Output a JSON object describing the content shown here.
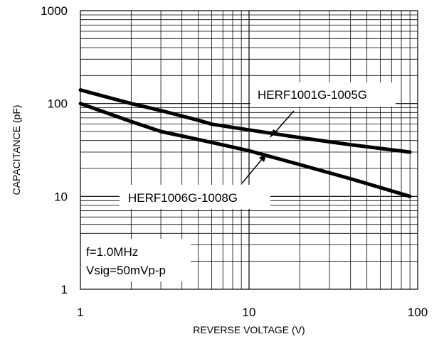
{
  "chart_data": {
    "type": "line",
    "title": "",
    "xlabel": "REVERSE VOLTAGE (V)",
    "ylabel": "CAPACITANCE (pF)",
    "x_scale": "log",
    "y_scale": "log",
    "xlim": [
      1,
      100
    ],
    "ylim": [
      1,
      1000
    ],
    "grid": true,
    "x_ticks": [
      "1",
      "10",
      "100"
    ],
    "y_ticks": [
      "1",
      "10",
      "100",
      "1000"
    ],
    "series": [
      {
        "name": "HERF1001G-1005G",
        "x": [
          1,
          2,
          3,
          5,
          6,
          10,
          20,
          40,
          90
        ],
        "y": [
          140,
          100,
          84,
          66,
          60,
          52,
          43,
          36,
          30
        ]
      },
      {
        "name": "HERF1006G-1008G",
        "x": [
          1,
          2,
          3,
          5,
          10,
          20,
          40,
          90
        ],
        "y": [
          100,
          64,
          50,
          41,
          31,
          22,
          15.5,
          10
        ]
      }
    ],
    "annotations": [
      "f=1.0MHz",
      "Vsig=50mVp-p"
    ]
  }
}
